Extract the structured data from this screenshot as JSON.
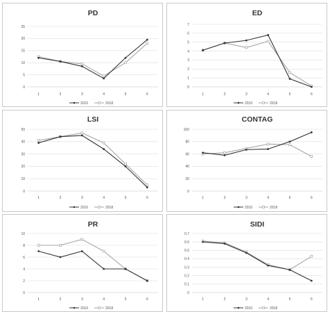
{
  "colors": {
    "series2010": "#333333",
    "series2018": "#a6a6a6",
    "grid": "#dedede",
    "axis": "#bfbfbf"
  },
  "chart_data": [
    {
      "type": "line",
      "title": "PD",
      "x": [
        1,
        2,
        3,
        4,
        5,
        6
      ],
      "ylim": [
        0,
        25
      ],
      "yticks": [
        0,
        5,
        10,
        15,
        20,
        25
      ],
      "grid": true,
      "legend": "bottom",
      "series": [
        {
          "name": "2010",
          "values": [
            12,
            10.5,
            8.5,
            3.5,
            12,
            19.5
          ]
        },
        {
          "name": "2018",
          "values": [
            12.5,
            10.5,
            9.5,
            4.5,
            10,
            18
          ]
        }
      ]
    },
    {
      "type": "line",
      "title": "ED",
      "x": [
        1,
        2,
        3,
        4,
        5,
        6
      ],
      "ylim": [
        0,
        7
      ],
      "yticks": [
        0,
        1,
        2,
        3,
        4,
        5,
        6,
        7
      ],
      "grid": true,
      "legend": "bottom",
      "series": [
        {
          "name": "2010",
          "values": [
            4.1,
            4.9,
            5.2,
            5.8,
            0.9,
            0
          ]
        },
        {
          "name": "2018",
          "values": [
            4.1,
            4.9,
            4.4,
            5.1,
            1.6,
            0.1
          ]
        }
      ]
    },
    {
      "type": "line",
      "title": "LSI",
      "x": [
        1,
        2,
        3,
        4,
        5,
        6
      ],
      "ylim": [
        0,
        50
      ],
      "yticks": [
        0,
        10,
        20,
        30,
        40,
        50
      ],
      "grid": true,
      "legend": "bottom",
      "series": [
        {
          "name": "2010",
          "values": [
            39,
            44,
            45,
            34,
            20,
            3
          ]
        },
        {
          "name": "2018",
          "values": [
            41,
            44,
            47,
            39,
            22,
            5
          ]
        }
      ]
    },
    {
      "type": "line",
      "title": "CONTAG",
      "x": [
        1,
        2,
        3,
        4,
        5,
        6
      ],
      "ylim": [
        0,
        100
      ],
      "yticks": [
        0,
        20,
        40,
        60,
        80,
        100
      ],
      "grid": true,
      "legend": "bottom",
      "series": [
        {
          "name": "2010",
          "values": [
            62,
            58,
            67,
            68,
            80,
            95
          ]
        },
        {
          "name": "2018",
          "values": [
            60,
            62,
            69,
            76,
            75,
            56
          ]
        }
      ]
    },
    {
      "type": "line",
      "title": "PR",
      "x": [
        1,
        2,
        3,
        4,
        5,
        6
      ],
      "ylim": [
        0,
        10
      ],
      "yticks": [
        0,
        2,
        4,
        6,
        8,
        10
      ],
      "grid": true,
      "legend": "bottom",
      "series": [
        {
          "name": "2010",
          "values": [
            7,
            6,
            7,
            4,
            4,
            2
          ]
        },
        {
          "name": "2018",
          "values": [
            8,
            8,
            9,
            7,
            4,
            2
          ]
        }
      ]
    },
    {
      "type": "line",
      "title": "SIDI",
      "x": [
        1,
        2,
        3,
        4,
        5,
        6
      ],
      "ylim": [
        0,
        0.7
      ],
      "yticks": [
        0,
        0.1,
        0.2,
        0.3,
        0.4,
        0.5,
        0.6,
        0.7
      ],
      "grid": true,
      "legend": "bottom",
      "series": [
        {
          "name": "2010",
          "values": [
            0.6,
            0.58,
            0.47,
            0.32,
            0.27,
            0.14
          ]
        },
        {
          "name": "2018",
          "values": [
            0.61,
            0.59,
            0.48,
            0.33,
            0.27,
            0.43
          ]
        }
      ]
    }
  ]
}
